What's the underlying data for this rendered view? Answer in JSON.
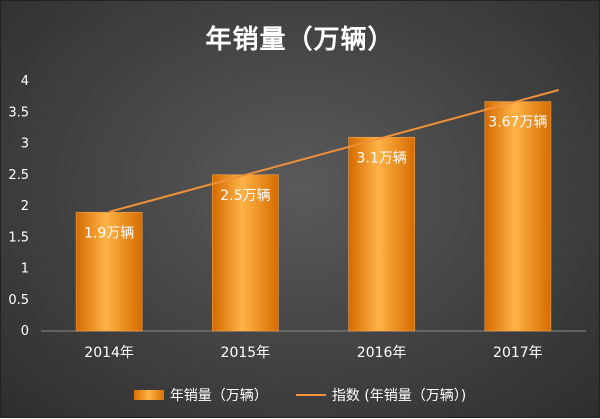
{
  "chart_data": {
    "type": "bar",
    "title": "年销量（万辆）",
    "categories": [
      "2014年",
      "2015年",
      "2016年",
      "2017年"
    ],
    "series": [
      {
        "name": "年销量（万辆）",
        "type": "bar",
        "values": [
          1.9,
          2.5,
          3.1,
          3.67
        ],
        "data_labels": [
          "1.9万辆",
          "2.5万辆",
          "3.1万辆",
          "3.67万辆"
        ],
        "color": "#F08A14"
      },
      {
        "name": "指数 (年销量（万辆）)",
        "type": "line",
        "trendline": "linear",
        "values": [
          1.9,
          2.5,
          3.1,
          3.67
        ],
        "color": "#F0913A"
      }
    ],
    "ylim": [
      0,
      4
    ],
    "yticks": [
      0,
      0.5,
      1,
      1.5,
      2,
      2.5,
      3,
      3.5,
      4
    ],
    "grid": false,
    "legend_position": "bottom"
  }
}
